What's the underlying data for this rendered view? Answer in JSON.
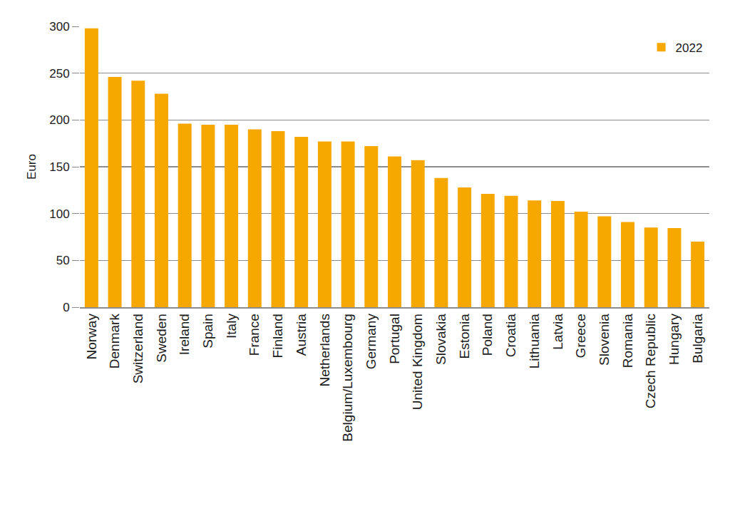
{
  "chart_data": {
    "type": "bar",
    "y_label": "Euro",
    "categories": [
      "Norway",
      "Denmark",
      "Switzerland",
      "Sweden",
      "Ireland",
      "Spain",
      "Italy",
      "France",
      "Finland",
      "Austria",
      "Netherlands",
      "Belgium/Luxembourg",
      "Germany",
      "Portugal",
      "United Kingdom",
      "Slovakia",
      "Estonia",
      "Poland",
      "Croatia",
      "Lithuania",
      "Latvia",
      "Greece",
      "Slovenia",
      "Romania",
      "Czech Republic",
      "Hungary",
      "Bulgaria"
    ],
    "series": [
      {
        "name": "2022",
        "color": "#f7a800",
        "values": [
          298,
          246,
          242,
          228,
          196,
          195,
          195,
          190,
          188,
          182,
          177,
          177,
          172,
          161,
          157,
          138,
          128,
          121,
          119,
          114,
          113.5,
          102,
          97,
          91,
          85,
          84.5,
          70
        ]
      }
    ],
    "ylim": [
      0,
      300
    ],
    "yticks": [
      0,
      50,
      100,
      150,
      200,
      250,
      300
    ],
    "grid": true,
    "legend": "upper right"
  }
}
